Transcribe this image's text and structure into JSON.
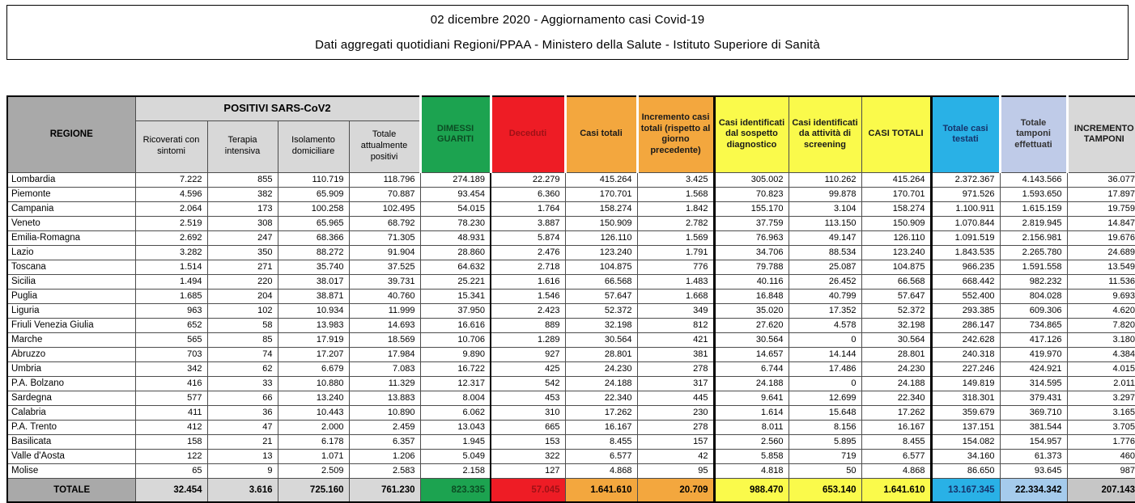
{
  "title": {
    "line1": "02 dicembre 2020 - Aggiornamento casi Covid-19",
    "line2": "Dati aggregati quotidiani Regioni/PPAA - Ministero della Salute - Istituto Superiore di Sanità"
  },
  "colors": {
    "green": "#1ca350",
    "green-text": "#0c4d24",
    "red": "#ee1c25",
    "red-text": "#9e1116",
    "orange": "#f3a73e",
    "yellow": "#fafa4b",
    "cyan": "#29b1e6",
    "cyan-text": "#16336b",
    "lavender": "#bfcbe8",
    "lightblue": "#a5cbec",
    "gray-mid": "#a9a9a9",
    "gray-light": "#d8d8d8",
    "grid": "#4d4d4d"
  },
  "table": {
    "headers": {
      "region": "REGIONE",
      "group": "POSITIVI SARS-CoV2",
      "sub": [
        "Ricoverati con sintomi",
        "Terapia intensiva",
        "Isolamento domiciliare",
        "Totale attualmente positivi"
      ],
      "spanning": [
        {
          "label": "DIMESSI GUARITI"
        },
        {
          "label": "Deceduti"
        },
        {
          "label": "Casi totali"
        },
        {
          "label": "Incremento casi totali (rispetto al giorno precedente)"
        },
        {
          "label": "Casi identificati dal sospetto diagnostico"
        },
        {
          "label": "Casi identificati da attività di screening"
        },
        {
          "label": "CASI TOTALI"
        },
        {
          "label": "Totale casi testati"
        },
        {
          "label": "Totale tamponi effettuati"
        },
        {
          "label": "INCREMENTO TAMPONI"
        }
      ]
    },
    "rows": [
      {
        "region": "Lombardia",
        "values": [
          "7.222",
          "855",
          "110.719",
          "118.796",
          "274.189",
          "22.279",
          "415.264",
          "3.425",
          "305.002",
          "110.262",
          "415.264",
          "2.372.367",
          "4.143.566",
          "36.077"
        ]
      },
      {
        "region": "Piemonte",
        "values": [
          "4.596",
          "382",
          "65.909",
          "70.887",
          "93.454",
          "6.360",
          "170.701",
          "1.568",
          "70.823",
          "99.878",
          "170.701",
          "971.526",
          "1.593.650",
          "17.897"
        ]
      },
      {
        "region": "Campania",
        "values": [
          "2.064",
          "173",
          "100.258",
          "102.495",
          "54.015",
          "1.764",
          "158.274",
          "1.842",
          "155.170",
          "3.104",
          "158.274",
          "1.100.911",
          "1.615.159",
          "19.759"
        ]
      },
      {
        "region": "Veneto",
        "values": [
          "2.519",
          "308",
          "65.965",
          "68.792",
          "78.230",
          "3.887",
          "150.909",
          "2.782",
          "37.759",
          "113.150",
          "150.909",
          "1.070.844",
          "2.819.945",
          "14.847"
        ]
      },
      {
        "region": "Emilia-Romagna",
        "values": [
          "2.692",
          "247",
          "68.366",
          "71.305",
          "48.931",
          "5.874",
          "126.110",
          "1.569",
          "76.963",
          "49.147",
          "126.110",
          "1.091.519",
          "2.156.981",
          "19.676"
        ]
      },
      {
        "region": "Lazio",
        "values": [
          "3.282",
          "350",
          "88.272",
          "91.904",
          "28.860",
          "2.476",
          "123.240",
          "1.791",
          "34.706",
          "88.534",
          "123.240",
          "1.843.535",
          "2.265.780",
          "24.689"
        ]
      },
      {
        "region": "Toscana",
        "values": [
          "1.514",
          "271",
          "35.740",
          "37.525",
          "64.632",
          "2.718",
          "104.875",
          "776",
          "79.788",
          "25.087",
          "104.875",
          "966.235",
          "1.591.558",
          "13.549"
        ]
      },
      {
        "region": "Sicilia",
        "values": [
          "1.494",
          "220",
          "38.017",
          "39.731",
          "25.221",
          "1.616",
          "66.568",
          "1.483",
          "40.116",
          "26.452",
          "66.568",
          "668.442",
          "982.232",
          "11.536"
        ]
      },
      {
        "region": "Puglia",
        "values": [
          "1.685",
          "204",
          "38.871",
          "40.760",
          "15.341",
          "1.546",
          "57.647",
          "1.668",
          "16.848",
          "40.799",
          "57.647",
          "552.400",
          "804.028",
          "9.693"
        ]
      },
      {
        "region": "Liguria",
        "values": [
          "963",
          "102",
          "10.934",
          "11.999",
          "37.950",
          "2.423",
          "52.372",
          "349",
          "35.020",
          "17.352",
          "52.372",
          "293.385",
          "609.306",
          "4.620"
        ]
      },
      {
        "region": "Friuli Venezia Giulia",
        "values": [
          "652",
          "58",
          "13.983",
          "14.693",
          "16.616",
          "889",
          "32.198",
          "812",
          "27.620",
          "4.578",
          "32.198",
          "286.147",
          "734.865",
          "7.820"
        ]
      },
      {
        "region": "Marche",
        "values": [
          "565",
          "85",
          "17.919",
          "18.569",
          "10.706",
          "1.289",
          "30.564",
          "421",
          "30.564",
          "0",
          "30.564",
          "242.628",
          "417.126",
          "3.180"
        ]
      },
      {
        "region": "Abruzzo",
        "values": [
          "703",
          "74",
          "17.207",
          "17.984",
          "9.890",
          "927",
          "28.801",
          "381",
          "14.657",
          "14.144",
          "28.801",
          "240.318",
          "419.970",
          "4.384"
        ]
      },
      {
        "region": "Umbria",
        "values": [
          "342",
          "62",
          "6.679",
          "7.083",
          "16.722",
          "425",
          "24.230",
          "278",
          "6.744",
          "17.486",
          "24.230",
          "227.246",
          "424.921",
          "4.015"
        ]
      },
      {
        "region": "P.A. Bolzano",
        "values": [
          "416",
          "33",
          "10.880",
          "11.329",
          "12.317",
          "542",
          "24.188",
          "317",
          "24.188",
          "0",
          "24.188",
          "149.819",
          "314.595",
          "2.011"
        ]
      },
      {
        "region": "Sardegna",
        "values": [
          "577",
          "66",
          "13.240",
          "13.883",
          "8.004",
          "453",
          "22.340",
          "445",
          "9.641",
          "12.699",
          "22.340",
          "318.301",
          "379.431",
          "3.297"
        ]
      },
      {
        "region": "Calabria",
        "values": [
          "411",
          "36",
          "10.443",
          "10.890",
          "6.062",
          "310",
          "17.262",
          "230",
          "1.614",
          "15.648",
          "17.262",
          "359.679",
          "369.710",
          "3.165"
        ]
      },
      {
        "region": "P.A. Trento",
        "values": [
          "412",
          "47",
          "2.000",
          "2.459",
          "13.043",
          "665",
          "16.167",
          "278",
          "8.011",
          "8.156",
          "16.167",
          "137.151",
          "381.544",
          "3.705"
        ]
      },
      {
        "region": "Basilicata",
        "values": [
          "158",
          "21",
          "6.178",
          "6.357",
          "1.945",
          "153",
          "8.455",
          "157",
          "2.560",
          "5.895",
          "8.455",
          "154.082",
          "154.957",
          "1.776"
        ]
      },
      {
        "region": "Valle d'Aosta",
        "values": [
          "122",
          "13",
          "1.071",
          "1.206",
          "5.049",
          "322",
          "6.577",
          "42",
          "5.858",
          "719",
          "6.577",
          "34.160",
          "61.373",
          "460"
        ]
      },
      {
        "region": "Molise",
        "values": [
          "65",
          "9",
          "2.509",
          "2.583",
          "2.158",
          "127",
          "4.868",
          "95",
          "4.818",
          "50",
          "4.868",
          "86.650",
          "93.645",
          "987"
        ]
      }
    ],
    "total": {
      "region": "TOTALE",
      "values": [
        "32.454",
        "3.616",
        "725.160",
        "761.230",
        "823.335",
        "57.045",
        "1.641.610",
        "20.709",
        "988.470",
        "653.140",
        "1.641.610",
        "13.167.345",
        "22.334.342",
        "207.143"
      ]
    }
  }
}
